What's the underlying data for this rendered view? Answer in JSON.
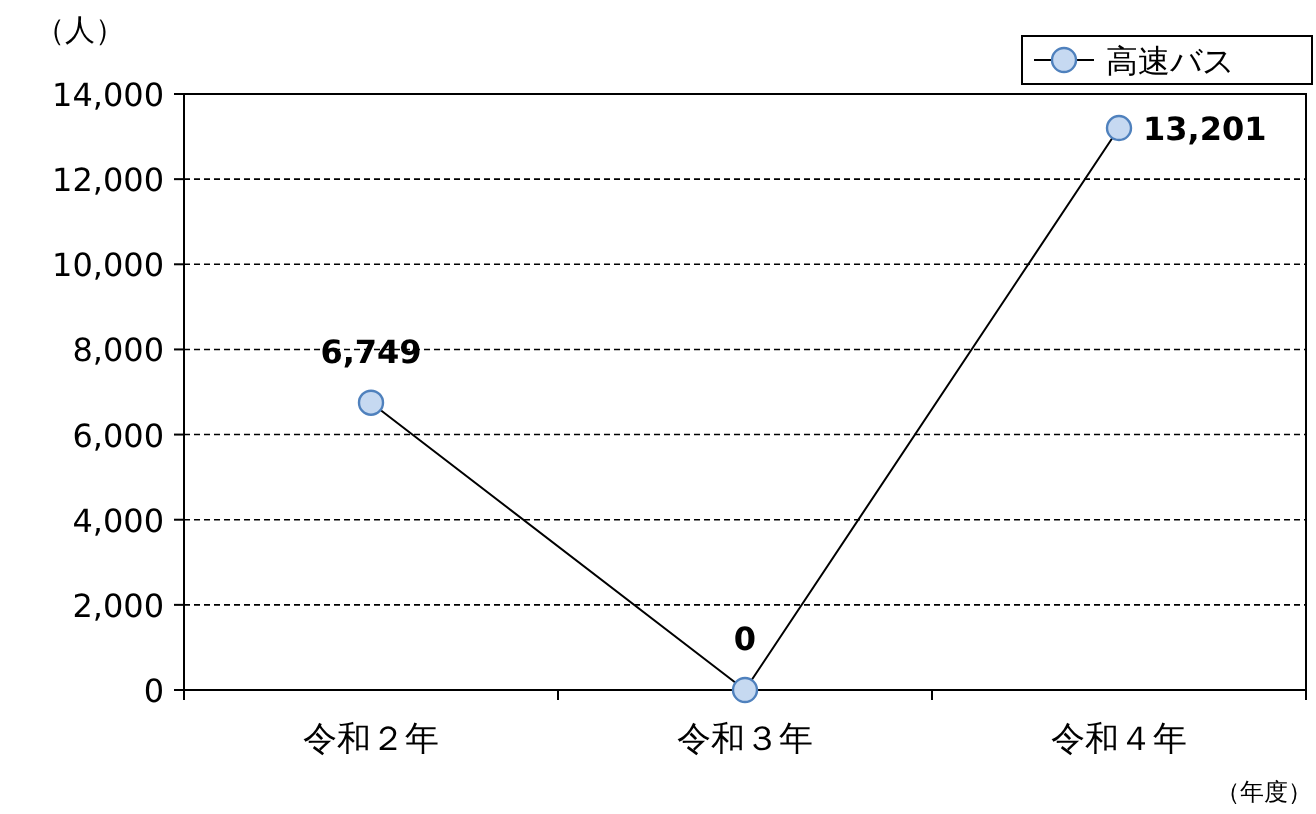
{
  "chart_data": {
    "type": "line",
    "ylabel": "（人）",
    "xlabel": "（年度）",
    "categories": [
      "令和２年",
      "令和３年",
      "令和４年"
    ],
    "series": [
      {
        "name": "高速バス",
        "color": "#000000",
        "values": [
          6749,
          0,
          13201
        ],
        "value_labels": [
          "6,749",
          "0",
          "13,201"
        ]
      }
    ],
    "ylim": [
      0,
      14000
    ],
    "yticks": [
      {
        "value": 0,
        "label": "0"
      },
      {
        "value": 2000,
        "label": "2,000"
      },
      {
        "value": 4000,
        "label": "4,000"
      },
      {
        "value": 6000,
        "label": "6,000"
      },
      {
        "value": 8000,
        "label": "8,000"
      },
      {
        "value": 10000,
        "label": "10,000"
      },
      {
        "value": 12000,
        "label": "12,000"
      },
      {
        "value": 14000,
        "label": "14,000"
      }
    ],
    "grid": "y",
    "legend": "top right",
    "marker": "circle",
    "line_style": "solid"
  }
}
